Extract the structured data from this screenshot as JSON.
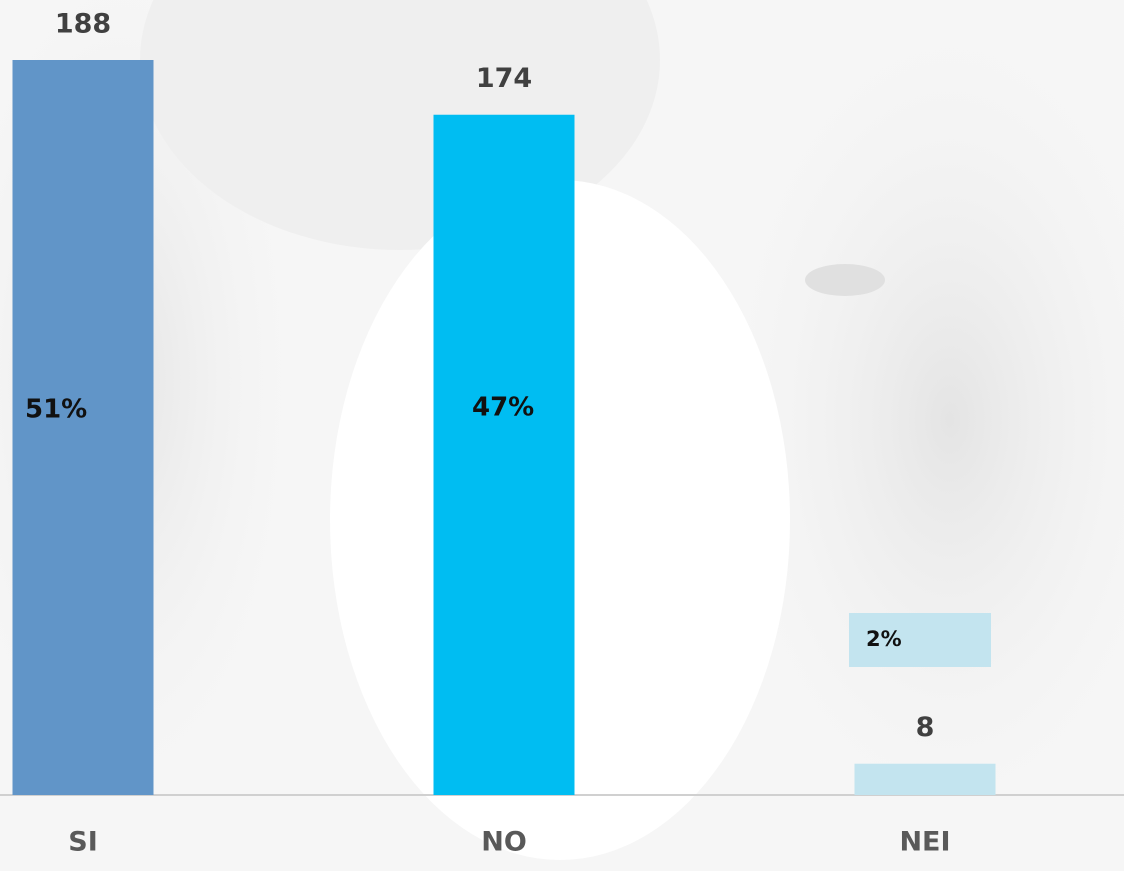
{
  "chart_data": {
    "type": "bar",
    "categories": [
      "SI",
      "NO",
      "NEI"
    ],
    "values": [
      188,
      174,
      8
    ],
    "share_labels": [
      "51%",
      "47%",
      "2%"
    ],
    "colors": [
      "#6195c8",
      "#00bdf2",
      "#c3e4ef"
    ]
  }
}
